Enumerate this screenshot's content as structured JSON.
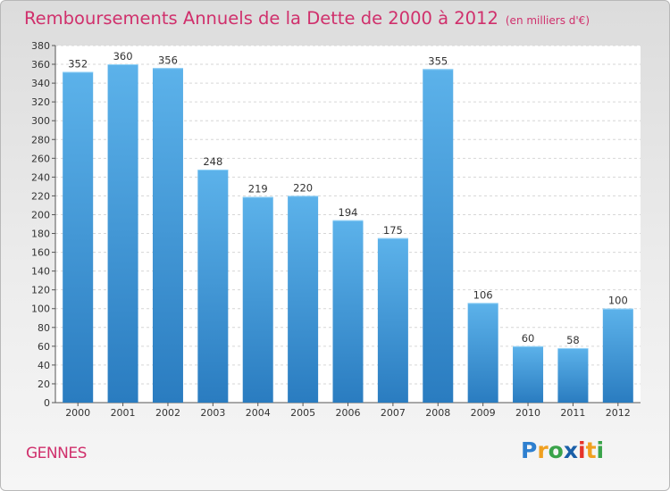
{
  "title": "Remboursements Annuels de la Dette de 2000 à 2012",
  "unit": "(en milliers d'€)",
  "commune": "GENNES",
  "logo": {
    "text": "Proxiti",
    "letters": [
      "P",
      "r",
      "o",
      "x",
      "i",
      "t",
      "i"
    ],
    "colors": [
      "#2e7fcf",
      "#f0a020",
      "#3aa34a",
      "#1a5fa8",
      "#e6332a",
      "#f0a020",
      "#3aa34a"
    ]
  },
  "colors": {
    "bar_top": "#5cb2ea",
    "bar_bottom": "#2a7cc0",
    "title": "#d0306c",
    "axis": "#333333"
  },
  "chart_data": {
    "type": "bar",
    "categories": [
      "2000",
      "2001",
      "2002",
      "2003",
      "2004",
      "2005",
      "2006",
      "2007",
      "2008",
      "2009",
      "2010",
      "2011",
      "2012"
    ],
    "values": [
      352,
      360,
      356,
      248,
      219,
      220,
      194,
      175,
      355,
      106,
      60,
      58,
      100
    ],
    "data_labels": [
      "352",
      "360",
      "356",
      "248",
      "219",
      "220",
      "194",
      "175",
      "355",
      "106",
      "60",
      "58",
      "100"
    ],
    "title": "Remboursements Annuels de la Dette de 2000 à 2012",
    "xlabel": "",
    "ylabel": "",
    "ylim": [
      0,
      380
    ],
    "yticks": [
      0,
      20,
      40,
      60,
      80,
      100,
      120,
      140,
      160,
      180,
      200,
      220,
      240,
      260,
      280,
      300,
      320,
      340,
      360,
      380
    ],
    "grid": true,
    "legend": "none"
  }
}
